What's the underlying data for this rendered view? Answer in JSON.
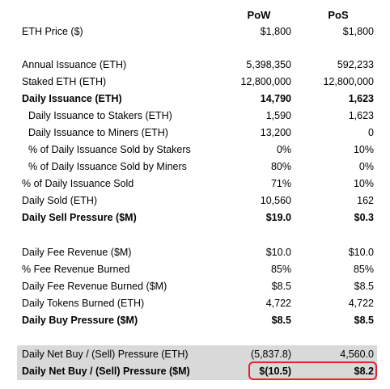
{
  "header": {
    "pow_label": "PoW",
    "pos_label": "PoS"
  },
  "rows": [
    {
      "label": "ETH Price ($)",
      "pow": "$1,800",
      "pos": "$1,800"
    },
    {
      "label": "Annual Issuance (ETH)",
      "pow": "5,398,350",
      "pos": "592,233"
    },
    {
      "label": "Staked ETH (ETH)",
      "pow": "12,800,000",
      "pos": "12,800,000"
    },
    {
      "label": "Daily Issuance (ETH)",
      "pow": "14,790",
      "pos": "1,623"
    },
    {
      "label": "Daily Issuance to Stakers (ETH)",
      "pow": "1,590",
      "pos": "1,623"
    },
    {
      "label": "Daily Issuance to Miners (ETH)",
      "pow": "13,200",
      "pos": "0"
    },
    {
      "label": "% of Daily Issuance Sold by Stakers",
      "pow": "0%",
      "pos": "10%"
    },
    {
      "label": "% of Daily Issuance Sold by Miners",
      "pow": "80%",
      "pos": "0%"
    },
    {
      "label": "% of Daily Issuance Sold",
      "pow": "71%",
      "pos": "10%"
    },
    {
      "label": "Daily Sold (ETH)",
      "pow": "10,560",
      "pos": "162"
    },
    {
      "label": "Daily Sell Pressure ($M)",
      "pow": "$19.0",
      "pos": "$0.3"
    },
    {
      "label": "Daily Fee Revenue ($M)",
      "pow": "$10.0",
      "pos": "$10.0"
    },
    {
      "label": "% Fee Revenue Burned",
      "pow": "85%",
      "pos": "85%"
    },
    {
      "label": "Daily Fee Revenue Burned ($M)",
      "pow": "$8.5",
      "pos": "$8.5"
    },
    {
      "label": "Daily Tokens Burned (ETH)",
      "pow": "4,722",
      "pos": "4,722"
    },
    {
      "label": "Daily Buy Pressure ($M)",
      "pow": "$8.5",
      "pos": "$8.5"
    },
    {
      "label": "Daily Net Buy / (Sell) Pressure (ETH)",
      "pow": "(5,837.8)",
      "pos": "4,560.0"
    },
    {
      "label": "Daily Net Buy / (Sell) Pressure ($M)",
      "pow": "$(10.5)",
      "pos": "$8.2"
    }
  ],
  "colors": {
    "shade": "#d9d9d9",
    "highlight_border": "#e8202a"
  }
}
